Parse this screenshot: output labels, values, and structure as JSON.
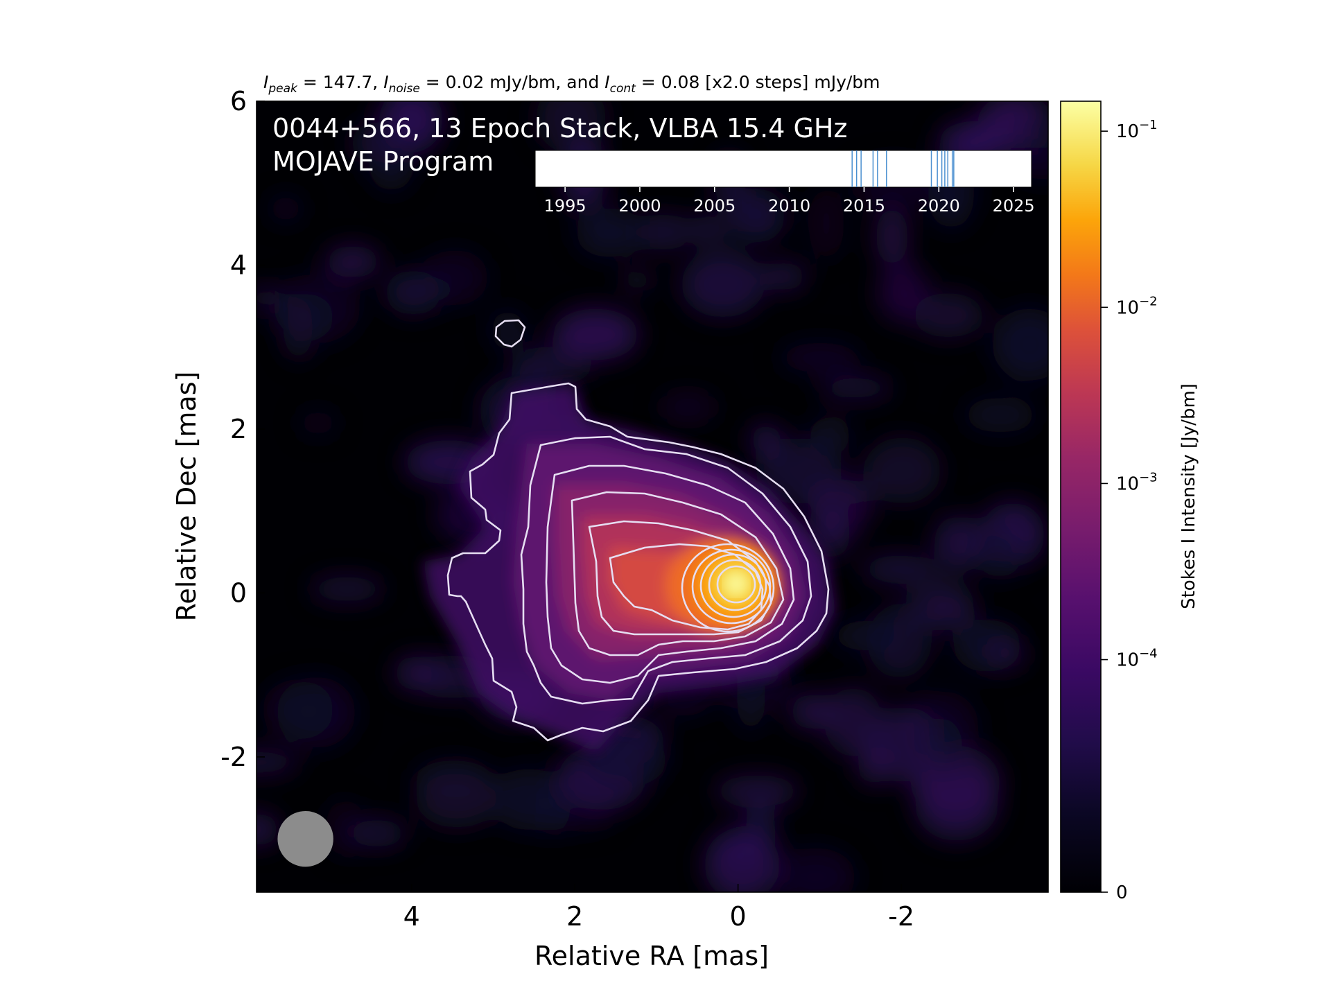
{
  "chart_data": {
    "type": "heatmap",
    "title_parts": {
      "peak_sym": "I",
      "peak_sub": "peak",
      "peak_text": " = 147.7, ",
      "noise_sym": "I",
      "noise_sub": "noise",
      "noise_text": " = 0.02 mJy/bm, and ",
      "cont_sym": "I",
      "cont_sub": "cont",
      "cont_text": " = 0.08 [x2.0 steps] mJy/bm"
    },
    "annotation_line1": "0044+566, 13 Epoch Stack, VLBA 15.4 GHz",
    "annotation_line2": "MOJAVE Program",
    "xlabel": "Relative RA [mas]",
    "ylabel": "Relative Dec [mas]",
    "xlim": [
      5.9,
      -3.8
    ],
    "ylim": [
      -3.65,
      6.0
    ],
    "x_ticks": [
      4,
      2,
      0,
      -2
    ],
    "x_tick_labels": [
      "4",
      "2",
      "0",
      "-2"
    ],
    "y_ticks": [
      -2,
      0,
      2,
      4,
      6
    ],
    "y_tick_labels": [
      "-2",
      "0",
      "2",
      "4",
      "6"
    ],
    "colorbar": {
      "label": "Stokes I Intensity [Jy/bm]",
      "scale": "log",
      "tick_values": [
        0.1,
        0.01,
        0.001,
        0.0001,
        0
      ],
      "tick_labels": [
        {
          "base": "10",
          "exp": "−1"
        },
        {
          "base": "10",
          "exp": "−2"
        },
        {
          "base": "10",
          "exp": "−3"
        },
        {
          "base": "10",
          "exp": "−4"
        },
        {
          "base": "0",
          "exp": ""
        }
      ]
    },
    "epoch_inset": {
      "xlim": [
        1993,
        2026.2
      ],
      "tick_values": [
        1995,
        2000,
        2005,
        2010,
        2015,
        2020,
        2025
      ],
      "tick_labels": [
        "1995",
        "2000",
        "2005",
        "2010",
        "2015",
        "2020",
        "2025"
      ],
      "epochs": [
        2014.2,
        2014.5,
        2014.8,
        2015.6,
        2015.9,
        2016.5,
        2019.5,
        2019.9,
        2020.2,
        2020.4,
        2020.6,
        2020.9,
        2021.0
      ]
    },
    "beam": {
      "ra": 5.3,
      "dec": -3.0,
      "diameter_mas": 0.68,
      "color": "#8c8c8c"
    },
    "contour_levels_mJy": [
      0.08,
      0.16,
      0.32,
      0.64,
      1.28,
      2.56,
      5.12,
      10.24,
      20.48,
      40.96,
      81.92
    ],
    "colors": {
      "contour": "#e6def2",
      "epoch_line": "#4a8fd0",
      "background": "#000004"
    }
  }
}
